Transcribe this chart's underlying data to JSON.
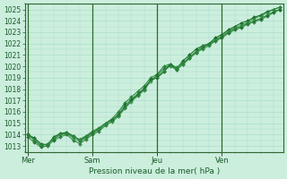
{
  "title": "",
  "xlabel": "Pression niveau de la mer( hPa )",
  "ylabel": "",
  "bg_color": "#cceedd",
  "grid_color": "#aaddcc",
  "line_color": "#1a6b2a",
  "line_color2": "#2d8b3e",
  "ylim": [
    1012.5,
    1025.5
  ],
  "yticks": [
    1013,
    1014,
    1015,
    1016,
    1017,
    1018,
    1019,
    1020,
    1021,
    1022,
    1023,
    1024,
    1025
  ],
  "day_labels": [
    "Mer",
    "Sam",
    "Jeu",
    "Ven"
  ],
  "day_positions": [
    0,
    10,
    20,
    30
  ],
  "xlim": [
    -0.5,
    39.5
  ],
  "n_points": 40,
  "series1": [
    1014.0,
    1013.7,
    1013.2,
    1013.1,
    1013.8,
    1014.1,
    1014.2,
    1013.9,
    1013.5,
    1013.8,
    1014.2,
    1014.5,
    1015.0,
    1015.3,
    1015.7,
    1016.4,
    1017.0,
    1017.5,
    1018.0,
    1018.8,
    1019.0,
    1019.5,
    1020.2,
    1019.8,
    1020.5,
    1021.0,
    1021.5,
    1021.8,
    1022.0,
    1022.5,
    1022.8,
    1023.2,
    1023.5,
    1023.8,
    1024.0,
    1024.3,
    1024.5,
    1024.8,
    1025.0,
    1025.2
  ],
  "series2": [
    1014.0,
    1013.5,
    1013.0,
    1013.2,
    1013.6,
    1014.0,
    1014.1,
    1013.8,
    1013.6,
    1013.9,
    1014.3,
    1014.6,
    1015.0,
    1015.4,
    1016.0,
    1016.8,
    1017.3,
    1017.8,
    1018.3,
    1019.0,
    1019.3,
    1020.0,
    1020.2,
    1019.9,
    1020.3,
    1020.8,
    1021.3,
    1021.7,
    1022.0,
    1022.3,
    1022.6,
    1023.0,
    1023.3,
    1023.5,
    1023.8,
    1024.0,
    1024.2,
    1024.5,
    1024.8,
    1025.0
  ],
  "series3": [
    1013.8,
    1013.3,
    1012.9,
    1013.0,
    1013.5,
    1013.8,
    1014.0,
    1013.5,
    1013.2,
    1013.6,
    1014.0,
    1014.3,
    1014.8,
    1015.2,
    1015.8,
    1016.6,
    1017.1,
    1017.6,
    1018.1,
    1018.8,
    1019.2,
    1019.8,
    1020.1,
    1019.7,
    1020.2,
    1020.7,
    1021.2,
    1021.6,
    1021.9,
    1022.2,
    1022.5,
    1022.9,
    1023.2,
    1023.4,
    1023.7,
    1023.9,
    1024.1,
    1024.4,
    1024.7,
    1025.0
  ],
  "series4": [
    1014.0,
    1013.6,
    1013.1,
    1013.1,
    1013.7,
    1014.0,
    1014.1,
    1013.7,
    1013.4,
    1013.7,
    1014.1,
    1014.4,
    1014.9,
    1015.1,
    1015.6,
    1016.3,
    1016.9,
    1017.4,
    1017.9,
    1018.7,
    1019.1,
    1019.6,
    1020.0,
    1019.7,
    1020.2,
    1020.7,
    1021.2,
    1021.5,
    1021.8,
    1022.3,
    1022.7,
    1023.1,
    1023.4,
    1023.6,
    1023.9,
    1024.2,
    1024.4,
    1024.7,
    1025.0,
    1025.2
  ]
}
